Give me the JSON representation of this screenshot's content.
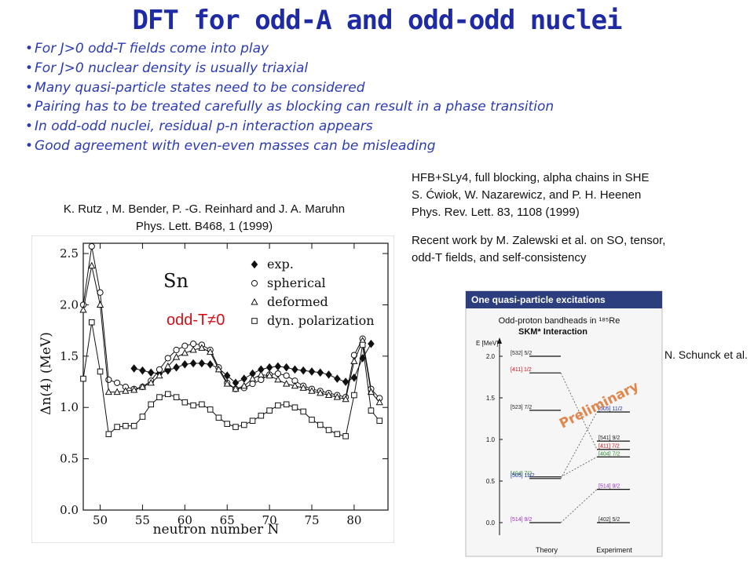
{
  "title": "DFT for odd-A and odd-odd nuclei",
  "bullets": [
    "For J>0 odd-T fields come into play",
    "For J>0 nuclear density is usually triaxial",
    "Many quasi-particle states need to be considered",
    "Pairing has to be treated carefully as blocking can result in a phase transition",
    "In odd-odd nuclei, residual p-n interaction  appears",
    "Good agreement with even-even masses can be misleading"
  ],
  "ref_left": {
    "line1": "K. Rutz , M. Bender, P. -G. Reinhard and J. A. Maruhn",
    "line2": "Phys. Lett. B468, 1 (1999)"
  },
  "ref_right": {
    "line1": "HFB+SLy4, full blocking, alpha chains in SHE",
    "line2": "S. Ćwiok, W. Nazarewicz, and P. H. Heenen",
    "line3": "Phys. Rev. Lett. 83, 1108 (1999)",
    "line4": "Recent work by M. Zalewski et al. on SO, tensor,",
    "line5": "odd-T fields, and self-consistency"
  },
  "schunck_label": "N. Schunck et al.",
  "odd_t_label": "odd-T≠0",
  "colors": {
    "title": "#1f2aa5",
    "bullets": "#2b3bb3",
    "odd_t": "#d0101a",
    "qp_header": "#2c3e7e"
  },
  "chart_data": [
    {
      "type": "line",
      "inset_label": "Sn",
      "xlabel": "neutron number N",
      "ylabel": "Δn(4) (MeV)",
      "xlim": [
        48,
        84
      ],
      "ylim": [
        0,
        2.6
      ],
      "xticks": [
        50,
        55,
        60,
        65,
        70,
        75,
        80
      ],
      "yticks": [
        "0.0",
        "0.5",
        "1.0",
        "1.5",
        "2.0",
        "2.5"
      ],
      "legend_position": "top-right",
      "series": [
        {
          "name": "exp.",
          "marker": "diamond",
          "x": [
            54,
            55,
            56,
            57,
            58,
            59,
            60,
            61,
            62,
            63,
            64,
            65,
            66,
            67,
            68,
            69,
            70,
            71,
            72,
            73,
            74,
            75,
            76,
            77,
            78,
            79,
            80,
            81,
            82
          ],
          "y": [
            1.38,
            1.36,
            1.34,
            1.33,
            1.36,
            1.39,
            1.42,
            1.43,
            1.43,
            1.42,
            1.38,
            1.31,
            1.24,
            1.28,
            1.33,
            1.37,
            1.39,
            1.4,
            1.39,
            1.37,
            1.36,
            1.35,
            1.34,
            1.32,
            1.28,
            1.25,
            1.29,
            1.48,
            1.62
          ]
        },
        {
          "name": "spherical",
          "marker": "circle",
          "x": [
            48,
            49,
            50,
            51,
            52,
            53,
            54,
            55,
            56,
            57,
            58,
            59,
            60,
            61,
            62,
            63,
            64,
            65,
            66,
            67,
            68,
            69,
            70,
            71,
            72,
            73,
            74,
            75,
            76,
            77,
            78,
            79,
            80,
            81,
            82,
            83
          ],
          "y": [
            2.0,
            2.57,
            2.12,
            1.27,
            1.24,
            1.2,
            1.18,
            1.2,
            1.26,
            1.37,
            1.48,
            1.56,
            1.6,
            1.62,
            1.61,
            1.56,
            1.39,
            1.24,
            1.18,
            1.19,
            1.23,
            1.27,
            1.32,
            1.33,
            1.31,
            1.26,
            1.21,
            1.18,
            1.16,
            1.14,
            1.12,
            1.1,
            1.51,
            1.67,
            1.18,
            1.09
          ]
        },
        {
          "name": "deformed",
          "marker": "triangle",
          "x": [
            48,
            49,
            50,
            51,
            52,
            53,
            54,
            55,
            56,
            57,
            58,
            59,
            60,
            61,
            62,
            63,
            64,
            65,
            66,
            67,
            68,
            69,
            70,
            71,
            72,
            73,
            74,
            75,
            76,
            77,
            78,
            79,
            80,
            81,
            82,
            83
          ],
          "y": [
            1.95,
            2.38,
            2.0,
            1.15,
            1.15,
            1.16,
            1.17,
            1.2,
            1.24,
            1.31,
            1.4,
            1.49,
            1.53,
            1.56,
            1.58,
            1.54,
            1.37,
            1.23,
            1.18,
            1.21,
            1.28,
            1.32,
            1.31,
            1.27,
            1.23,
            1.21,
            1.19,
            1.16,
            1.14,
            1.12,
            1.1,
            1.08,
            1.45,
            1.65,
            1.15,
            1.05
          ]
        },
        {
          "name": "dyn. polarization",
          "marker": "square",
          "x": [
            48,
            49,
            50,
            51,
            52,
            53,
            54,
            55,
            56,
            57,
            58,
            59,
            60,
            61,
            62,
            63,
            64,
            65,
            66,
            67,
            68,
            69,
            70,
            71,
            72,
            73,
            74,
            75,
            76,
            77,
            78,
            79,
            80,
            81,
            82,
            83
          ],
          "y": [
            1.28,
            1.83,
            1.35,
            0.74,
            0.81,
            0.82,
            0.82,
            0.91,
            1.03,
            1.1,
            1.13,
            1.1,
            1.05,
            1.02,
            1.03,
            0.98,
            0.9,
            0.84,
            0.81,
            0.83,
            0.87,
            0.92,
            0.97,
            1.02,
            1.03,
            1.0,
            0.96,
            0.88,
            0.83,
            0.78,
            0.74,
            0.72,
            1.12,
            1.61,
            0.97,
            0.87
          ]
        }
      ]
    },
    {
      "type": "diagram",
      "header": "One quasi-particle excitations",
      "title_line1": "Odd-proton bandheads in ¹⁸⁵Re",
      "title_line2": "SKM* Interaction",
      "yunit": "E [MeV]",
      "ylim": [
        0,
        2.0
      ],
      "yticks": [
        "0.0",
        "0.5",
        "1.0",
        "1.5",
        "2.0"
      ],
      "stamp": "Preliminary",
      "col_theory": "Theory",
      "col_experiment": "Experiment",
      "theory_levels": [
        {
          "label": "[532] 5/2",
          "e": 2.0,
          "color": "#222222"
        },
        {
          "label": "[411] 1/2",
          "e": 1.8,
          "color": "#d0101a"
        },
        {
          "label": "[523] 7/2",
          "e": 1.35,
          "color": "#222222"
        },
        {
          "label": "[404] 7/2",
          "e": 0.55,
          "color": "#2a8a2a"
        },
        {
          "label": "[505] 11/2",
          "e": 0.53,
          "color": "#2030a0"
        },
        {
          "label": "[514] 9/2",
          "e": 0.0,
          "color": "#9b30c0"
        }
      ],
      "experiment_levels": [
        {
          "label": "[505] 11/2",
          "e": 1.33,
          "color": "#2030a0"
        },
        {
          "label": "[541] 9/2",
          "e": 0.98,
          "color": "#222222"
        },
        {
          "label": "[411] 7/2",
          "e": 0.88,
          "color": "#d0101a"
        },
        {
          "label": "[404] 7/2",
          "e": 0.79,
          "color": "#2a8a2a"
        },
        {
          "label": "[514] 9/2",
          "e": 0.4,
          "color": "#9b30c0"
        },
        {
          "label": "[402] 5/2",
          "e": 0.0,
          "color": "#222222"
        }
      ]
    }
  ]
}
